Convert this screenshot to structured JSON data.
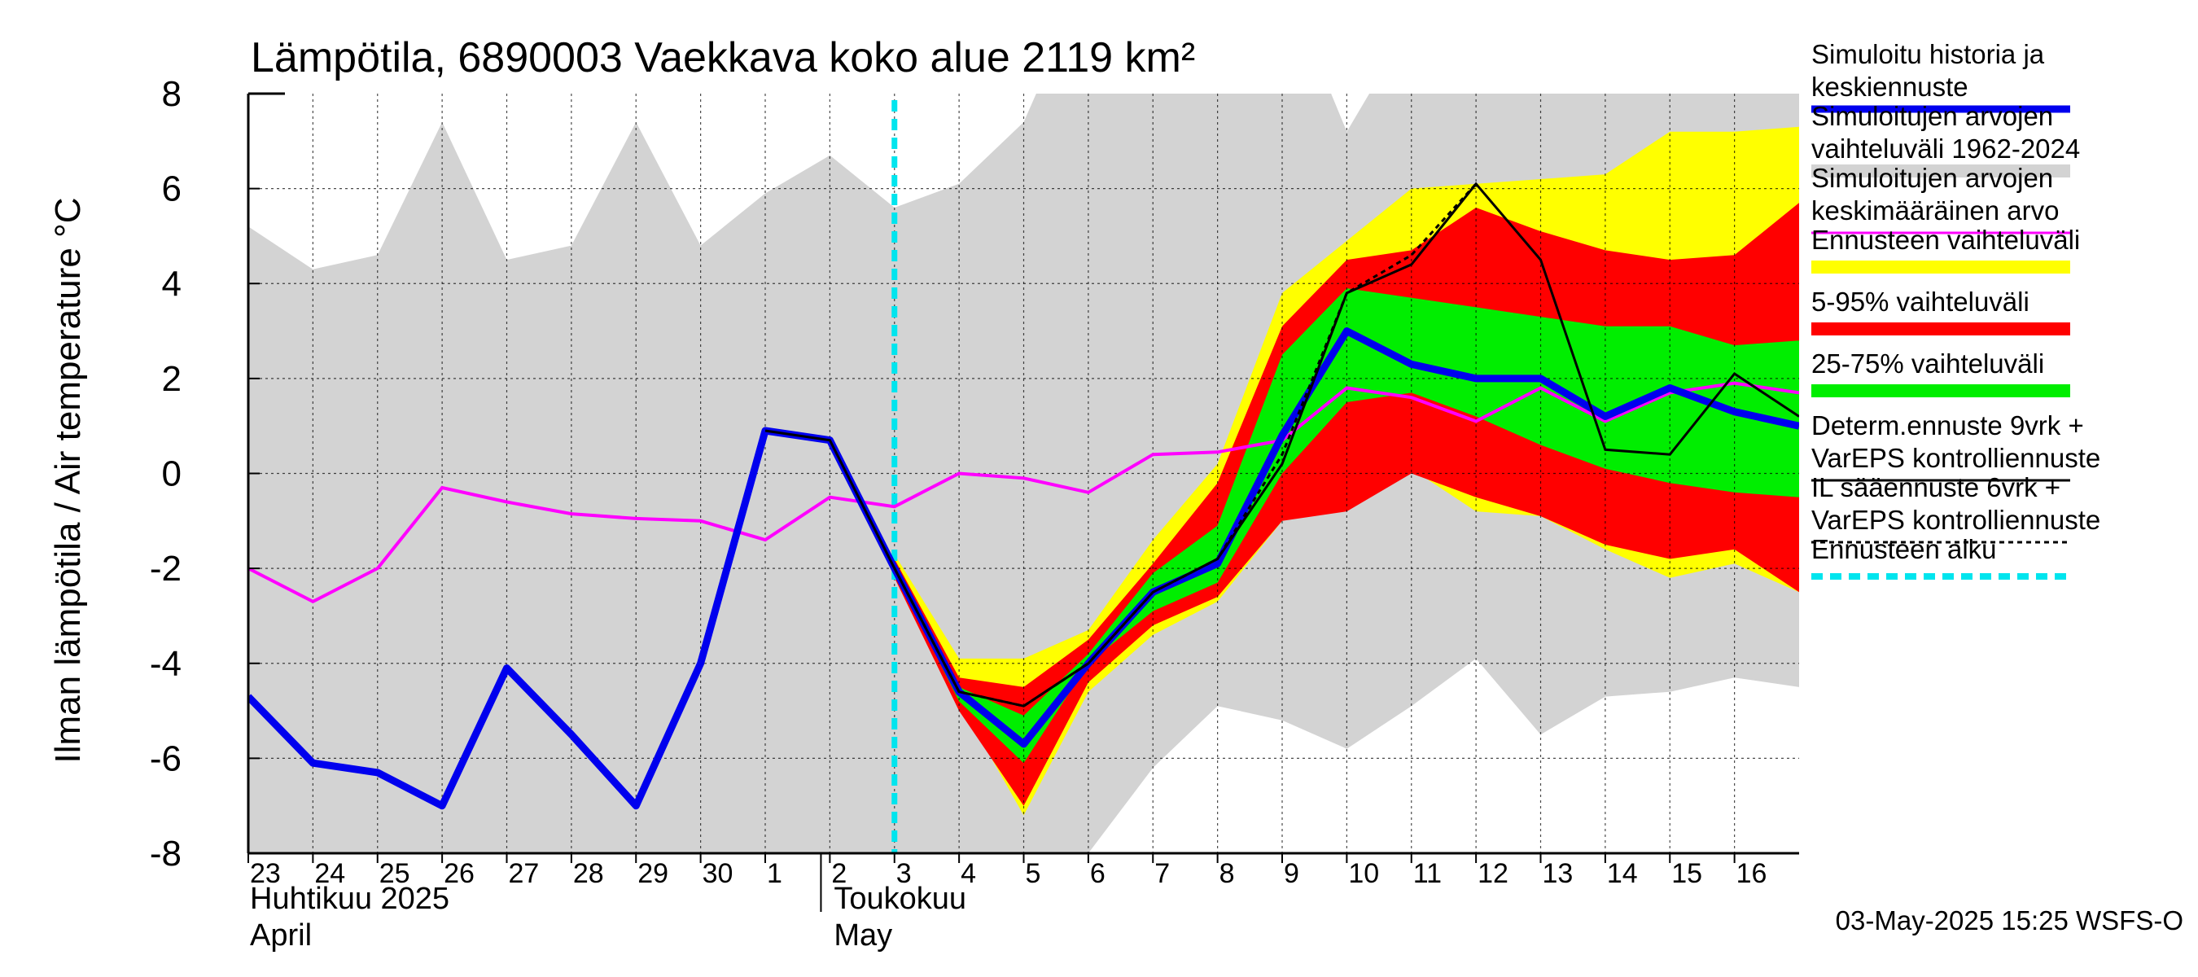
{
  "chart_data": {
    "type": "line",
    "title": "Lämpötila, 6890003 Vaekkava koko alue 2119 km²",
    "ylabel": "Ilman lämpötila / Air temperature   °C",
    "ylim": [
      -8,
      8
    ],
    "yticks": [
      8,
      6,
      4,
      2,
      0,
      -2,
      -4,
      -6,
      -8
    ],
    "xlim": [
      0,
      24
    ],
    "x_day_labels": [
      "23",
      "24",
      "25",
      "26",
      "27",
      "28",
      "29",
      "30",
      "1",
      "2",
      "3",
      "4",
      "5",
      "6",
      "7",
      "8",
      "9",
      "10",
      "11",
      "12",
      "13",
      "14",
      "15",
      "16"
    ],
    "months": [
      {
        "line1": "Huhtikuu  2025",
        "line2": "April",
        "start_day_index": 0
      },
      {
        "line1": "Toukokuu",
        "line2": "May",
        "start_day_index": 9
      }
    ],
    "forecast_start_x": 10,
    "grid": true,
    "legend_position": "right",
    "grey_band": {
      "x": [
        0,
        1,
        2,
        3,
        4,
        5,
        6,
        7,
        8,
        9,
        10,
        11,
        12,
        13,
        14,
        15,
        16,
        17,
        18,
        19,
        20,
        21,
        22,
        23,
        24
      ],
      "upper": [
        5.2,
        4.3,
        4.6,
        7.4,
        4.5,
        4.8,
        7.4,
        4.8,
        5.9,
        6.7,
        5.6,
        6.1,
        7.4,
        10.5,
        10.5,
        10.5,
        10.5,
        7.2,
        9.5,
        9.5,
        9.5,
        9.5,
        9.5,
        9.5,
        9.5
      ],
      "lower": [
        -9,
        -9,
        -9,
        -9,
        -9,
        -9,
        -9,
        -9,
        -9,
        -9,
        -9,
        -9,
        -9,
        -8,
        -6.2,
        -4.9,
        -5.2,
        -5.8,
        -4.9,
        -3.9,
        -5.5,
        -4.7,
        -4.6,
        -4.3,
        -4.5
      ]
    },
    "forecast_bands": {
      "x": [
        10,
        11,
        12,
        13,
        14,
        15,
        16,
        17,
        18,
        19,
        20,
        21,
        22,
        23,
        24
      ],
      "yellow_upper": [
        -1.7,
        -3.9,
        -3.9,
        -3.3,
        -1.4,
        0.2,
        3.8,
        4.9,
        6.0,
        6.1,
        6.2,
        6.3,
        7.2,
        7.2,
        7.3
      ],
      "yellow_lower": [
        -2.2,
        -4.8,
        -7.2,
        -4.6,
        -3.4,
        -2.7,
        -1.0,
        -0.7,
        0.1,
        -0.8,
        -0.9,
        -1.6,
        -2.2,
        -1.9,
        -2.5
      ],
      "red_upper": [
        -1.8,
        -4.3,
        -4.5,
        -3.5,
        -1.9,
        -0.2,
        3.1,
        4.5,
        4.7,
        5.6,
        5.1,
        4.7,
        4.5,
        4.6,
        5.7
      ],
      "red_lower": [
        -2.2,
        -5.0,
        -7.0,
        -4.4,
        -3.2,
        -2.6,
        -1.0,
        -0.8,
        0.0,
        -0.5,
        -0.9,
        -1.5,
        -1.8,
        -1.6,
        -2.5
      ],
      "green_upper": [
        -1.9,
        -4.5,
        -5.1,
        -3.8,
        -2.1,
        -1.1,
        2.5,
        3.9,
        3.7,
        3.5,
        3.3,
        3.1,
        3.1,
        2.7,
        2.8
      ],
      "green_lower": [
        -2.1,
        -4.8,
        -6.1,
        -4.0,
        -2.9,
        -2.3,
        0.0,
        1.5,
        1.7,
        1.2,
        0.6,
        0.1,
        -0.2,
        -0.4,
        -0.5
      ]
    },
    "series": [
      {
        "name": "Simuloitu historia ja keskiennuste",
        "color": "#0000ee",
        "x": [
          0,
          1,
          2,
          3,
          4,
          5,
          6,
          7,
          8,
          9,
          10,
          11,
          12,
          13,
          14,
          15,
          16,
          17,
          18,
          19,
          20,
          21,
          22,
          23,
          24
        ],
        "values": [
          -4.7,
          -6.1,
          -6.3,
          -7.0,
          -4.1,
          -5.5,
          -7.0,
          -4.0,
          0.9,
          0.7,
          -2.0,
          -4.6,
          -5.7,
          -4.0,
          -2.5,
          -1.9,
          0.8,
          3.0,
          2.3,
          2.0,
          2.0,
          1.2,
          1.8,
          1.3,
          1.0
        ]
      },
      {
        "name": "Simuloitujen arvojen keskimääräinen arvo",
        "color": "#ff00ff",
        "x": [
          0,
          1,
          2,
          3,
          4,
          5,
          6,
          7,
          8,
          9,
          10,
          11,
          12,
          13,
          14,
          15,
          16,
          17,
          18,
          19,
          20,
          21,
          22,
          23,
          24
        ],
        "values": [
          -2.0,
          -2.7,
          -2.0,
          -0.3,
          -0.6,
          -0.85,
          -0.95,
          -1.0,
          -1.4,
          -0.5,
          -0.7,
          0.0,
          -0.1,
          -0.4,
          0.4,
          0.45,
          0.7,
          1.8,
          1.6,
          1.1,
          1.8,
          1.1,
          1.7,
          1.9,
          1.7
        ]
      },
      {
        "name": "Determ.ennuste 9vrk + VarEPS kontrolliennuste",
        "color": "#000000",
        "x": [
          8,
          9,
          10,
          11,
          12,
          13,
          14,
          15,
          16,
          17,
          18,
          19,
          20,
          21,
          22,
          23,
          24
        ],
        "values": [
          0.9,
          0.7,
          -2.0,
          -4.6,
          -4.9,
          -4.0,
          -2.5,
          -1.8,
          0.2,
          3.8,
          4.4,
          6.1,
          4.5,
          0.5,
          0.4,
          2.1,
          1.2
        ]
      },
      {
        "name": "IL sääennuste 6vrk + VarEPS kontrolliennuste",
        "color": "#000000",
        "x": [
          10,
          11,
          12,
          13,
          14,
          15,
          16,
          17,
          18,
          19
        ],
        "values": [
          -2.0,
          -4.6,
          -4.9,
          -4.0,
          -2.5,
          -1.8,
          0.4,
          3.8,
          4.6,
          6.1
        ]
      }
    ]
  },
  "legend": [
    {
      "line1": "Simuloitu historia ja",
      "line2": "keskiennuste",
      "kind": "line",
      "color": "#0000ee"
    },
    {
      "line1": "Simuloitujen arvojen",
      "line2": "vaihteluväli 1962-2024",
      "kind": "band",
      "color": "#d3d3d3"
    },
    {
      "line1": "Simuloitujen arvojen",
      "line2": "keskimääräinen arvo",
      "kind": "line-thin",
      "color": "#ff00ff"
    },
    {
      "line1": "Ennusteen vaihteluväli",
      "line2": "",
      "kind": "band",
      "color": "#ffff00"
    },
    {
      "line1": "5-95% vaihteluväli",
      "line2": "",
      "kind": "band",
      "color": "#ff0000"
    },
    {
      "line1": "25-75% vaihteluväli",
      "line2": "",
      "kind": "band",
      "color": "#00ee00"
    },
    {
      "line1": "Determ.ennuste 9vrk +",
      "line2": "VarEPS kontrolliennuste",
      "kind": "line-thin",
      "color": "#000000"
    },
    {
      "line1": "IL sääennuste 6vrk  +",
      "line2": "  VarEPS kontrolliennuste",
      "kind": "dashed",
      "color": "#000000"
    },
    {
      "line1": "Ennusteen alku",
      "line2": "",
      "kind": "dashed-thick",
      "color": "#00e5ee"
    }
  ],
  "footer": "03-May-2025 15:25 WSFS-O"
}
